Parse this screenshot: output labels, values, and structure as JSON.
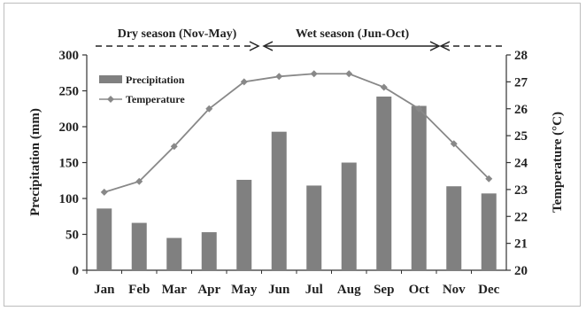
{
  "chart_data": {
    "type": "bar-line",
    "categories": [
      "Jan",
      "Feb",
      "Mar",
      "Apr",
      "May",
      "Jun",
      "Jul",
      "Aug",
      "Sep",
      "Oct",
      "Nov",
      "Dec"
    ],
    "series": [
      {
        "name": "Precipitation",
        "type": "bar",
        "axis": "left",
        "color": "#808080",
        "values": [
          86,
          66,
          45,
          53,
          126,
          193,
          118,
          150,
          242,
          229,
          117,
          107
        ]
      },
      {
        "name": "Temperature",
        "type": "line",
        "axis": "right",
        "color": "#888888",
        "marker": "diamond",
        "values": [
          22.9,
          23.3,
          24.6,
          26.0,
          27.0,
          27.2,
          27.3,
          27.3,
          26.8,
          26.0,
          24.7,
          23.4
        ]
      }
    ],
    "ylabel": "Precipitation (mm)",
    "y2label": "Temperature (°C)",
    "ylim": [
      0,
      300
    ],
    "y2lim": [
      20,
      28
    ],
    "yticks": [
      "0",
      "50",
      "100",
      "150",
      "200",
      "250",
      "300"
    ],
    "y2ticks": [
      "20",
      "21",
      "22",
      "23",
      "24",
      "25",
      "26",
      "27",
      "28"
    ],
    "legend_position": "top-left",
    "grid": false,
    "annotations": {
      "dry_label": "Dry season (Nov-May)",
      "wet_label": "Wet season (Jun-Oct)"
    }
  }
}
